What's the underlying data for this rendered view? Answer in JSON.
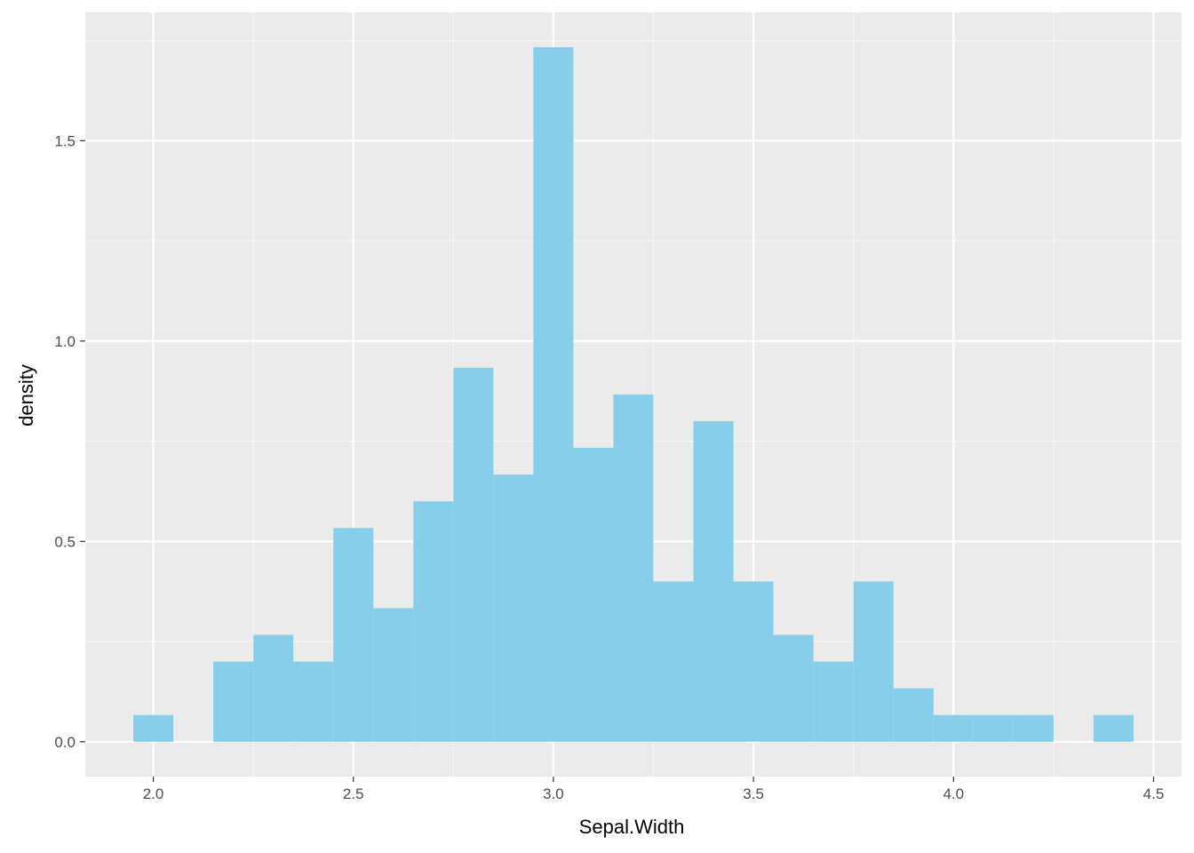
{
  "chart_data": {
    "type": "bar",
    "xlabel": "Sepal.Width",
    "ylabel": "density",
    "xlim": [
      1.83,
      4.57
    ],
    "ylim": [
      -0.087,
      1.82
    ],
    "x_ticks": [
      2.0,
      2.5,
      3.0,
      3.5,
      4.0,
      4.5
    ],
    "x_tick_labels": [
      "2.0",
      "2.5",
      "3.0",
      "3.5",
      "4.0",
      "4.5"
    ],
    "y_ticks": [
      0.0,
      0.5,
      1.0,
      1.5
    ],
    "y_tick_labels": [
      "0.0",
      "0.5",
      "1.0",
      "1.5"
    ],
    "bin_width": 0.1,
    "bins": [
      {
        "x": 2.0,
        "value": 0.0667
      },
      {
        "x": 2.1,
        "value": 0.0
      },
      {
        "x": 2.2,
        "value": 0.2
      },
      {
        "x": 2.3,
        "value": 0.2667
      },
      {
        "x": 2.4,
        "value": 0.2
      },
      {
        "x": 2.5,
        "value": 0.5333
      },
      {
        "x": 2.6,
        "value": 0.3333
      },
      {
        "x": 2.7,
        "value": 0.6
      },
      {
        "x": 2.8,
        "value": 0.9333
      },
      {
        "x": 2.9,
        "value": 0.6667
      },
      {
        "x": 3.0,
        "value": 1.7333
      },
      {
        "x": 3.1,
        "value": 0.7333
      },
      {
        "x": 3.2,
        "value": 0.8667
      },
      {
        "x": 3.3,
        "value": 0.4
      },
      {
        "x": 3.4,
        "value": 0.8
      },
      {
        "x": 3.5,
        "value": 0.4
      },
      {
        "x": 3.6,
        "value": 0.2667
      },
      {
        "x": 3.7,
        "value": 0.2
      },
      {
        "x": 3.8,
        "value": 0.4
      },
      {
        "x": 3.9,
        "value": 0.1333
      },
      {
        "x": 4.0,
        "value": 0.0667
      },
      {
        "x": 4.1,
        "value": 0.0667
      },
      {
        "x": 4.2,
        "value": 0.0667
      },
      {
        "x": 4.3,
        "value": 0.0
      },
      {
        "x": 4.4,
        "value": 0.0667
      }
    ],
    "grid": true,
    "legend": "none",
    "colors": {
      "panel_background": "#ebebeb",
      "grid_major": "#ffffff",
      "grid_minor": "#f7f7f7",
      "bar_fill": "#87ceeb",
      "tick_text": "#4d4d4d",
      "tick_mark": "#333333",
      "title_text": "#000000"
    }
  }
}
